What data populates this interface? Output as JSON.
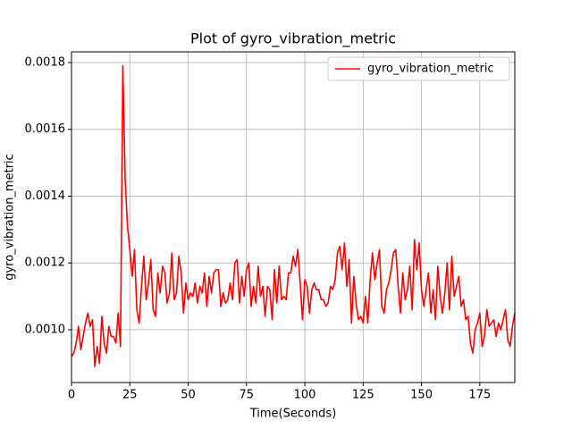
{
  "chart_data": {
    "type": "line",
    "title": "Plot of gyro_vibration_metric",
    "x_label": "Time(Seconds)",
    "y_label": "gyro_vibration_metric",
    "x": [
      0,
      1,
      2,
      3,
      4,
      5,
      6,
      7,
      8,
      9,
      10,
      11,
      12,
      13,
      14,
      15,
      16,
      17,
      18,
      19,
      20,
      21,
      22,
      23,
      24,
      25,
      26,
      27,
      28,
      29,
      30,
      31,
      32,
      33,
      34,
      35,
      36,
      37,
      38,
      39,
      40,
      41,
      42,
      43,
      44,
      45,
      46,
      47,
      48,
      49,
      50,
      51,
      52,
      53,
      54,
      55,
      56,
      57,
      58,
      59,
      60,
      61,
      62,
      63,
      64,
      65,
      66,
      67,
      68,
      69,
      70,
      71,
      72,
      73,
      74,
      75,
      76,
      77,
      78,
      79,
      80,
      81,
      82,
      83,
      84,
      85,
      86,
      87,
      88,
      89,
      90,
      91,
      92,
      93,
      94,
      95,
      96,
      97,
      98,
      99,
      100,
      101,
      102,
      103,
      104,
      105,
      106,
      107,
      108,
      109,
      110,
      111,
      112,
      113,
      114,
      115,
      116,
      117,
      118,
      119,
      120,
      121,
      122,
      123,
      124,
      125,
      126,
      127,
      128,
      129,
      130,
      131,
      132,
      133,
      134,
      135,
      136,
      137,
      138,
      139,
      140,
      141,
      142,
      143,
      144,
      145,
      146,
      147,
      148,
      149,
      150,
      151,
      152,
      153,
      154,
      155,
      156,
      157,
      158,
      159,
      160,
      161,
      162,
      163,
      164,
      165,
      166,
      167,
      168,
      169,
      170,
      171,
      172,
      173,
      174,
      175,
      176,
      177,
      178,
      179,
      180,
      181,
      182,
      183,
      184,
      185,
      186,
      187,
      188,
      189,
      190
    ],
    "series": [
      {
        "name": "gyro_vibration_metric",
        "color": "#ff0000",
        "values": [
          0.00092,
          0.00093,
          0.00096,
          0.00101,
          0.00094,
          0.00098,
          0.00102,
          0.00105,
          0.00101,
          0.00103,
          0.00089,
          0.00095,
          0.0009,
          0.00104,
          0.00096,
          0.00093,
          0.00101,
          0.00098,
          0.00098,
          0.00096,
          0.00105,
          0.00095,
          0.00179,
          0.00145,
          0.00131,
          0.00124,
          0.00116,
          0.00124,
          0.00106,
          0.00102,
          0.00113,
          0.00122,
          0.00109,
          0.00114,
          0.00121,
          0.00106,
          0.00104,
          0.00117,
          0.00111,
          0.00119,
          0.00117,
          0.00108,
          0.00111,
          0.00123,
          0.00109,
          0.00111,
          0.00122,
          0.00117,
          0.00105,
          0.00114,
          0.00109,
          0.00111,
          0.0011,
          0.00114,
          0.00108,
          0.00113,
          0.00111,
          0.00117,
          0.00107,
          0.00116,
          0.00111,
          0.00117,
          0.00118,
          0.00118,
          0.00107,
          0.00111,
          0.00108,
          0.00109,
          0.00114,
          0.00109,
          0.0012,
          0.00121,
          0.00108,
          0.00116,
          0.0011,
          0.00118,
          0.0012,
          0.00107,
          0.00113,
          0.00108,
          0.00119,
          0.0011,
          0.00113,
          0.00104,
          0.00113,
          0.00112,
          0.00103,
          0.00118,
          0.00108,
          0.00119,
          0.00109,
          0.0011,
          0.00109,
          0.00117,
          0.00117,
          0.00122,
          0.00119,
          0.00124,
          0.00114,
          0.00103,
          0.00115,
          0.00113,
          0.00105,
          0.00112,
          0.00114,
          0.00112,
          0.00112,
          0.00109,
          0.00109,
          0.00107,
          0.00108,
          0.00113,
          0.00112,
          0.00115,
          0.00123,
          0.00125,
          0.00118,
          0.00126,
          0.00113,
          0.00121,
          0.00102,
          0.00116,
          0.00108,
          0.00103,
          0.00104,
          0.00102,
          0.0011,
          0.00102,
          0.00115,
          0.00123,
          0.00115,
          0.0012,
          0.00124,
          0.00107,
          0.00105,
          0.00112,
          0.00114,
          0.00118,
          0.00123,
          0.00124,
          0.00113,
          0.00105,
          0.00117,
          0.00109,
          0.00112,
          0.00119,
          0.00106,
          0.00127,
          0.00118,
          0.00126,
          0.00112,
          0.00107,
          0.00112,
          0.00117,
          0.00105,
          0.00112,
          0.00103,
          0.00119,
          0.0011,
          0.00105,
          0.00111,
          0.0012,
          0.00106,
          0.00122,
          0.0011,
          0.00113,
          0.00116,
          0.00107,
          0.00109,
          0.00103,
          0.00104,
          0.00096,
          0.00093,
          0.001,
          0.00102,
          0.00105,
          0.00095,
          0.00098,
          0.00106,
          0.00101,
          0.00102,
          0.00103,
          0.00098,
          0.00102,
          0.001,
          0.00103,
          0.00106,
          0.00097,
          0.00095,
          0.00101,
          0.00105
        ]
      }
    ],
    "xlim": [
      0,
      190
    ],
    "xticks": [
      0,
      25,
      50,
      75,
      100,
      125,
      150,
      175
    ],
    "ylim": [
      0.000842,
      0.001832
    ],
    "yticks": [
      {
        "value": 0.001,
        "label": "0.0010"
      },
      0.0012,
      0.0014,
      0.0016,
      0.0018
    ],
    "grid": true,
    "legend": "upper-right"
  }
}
